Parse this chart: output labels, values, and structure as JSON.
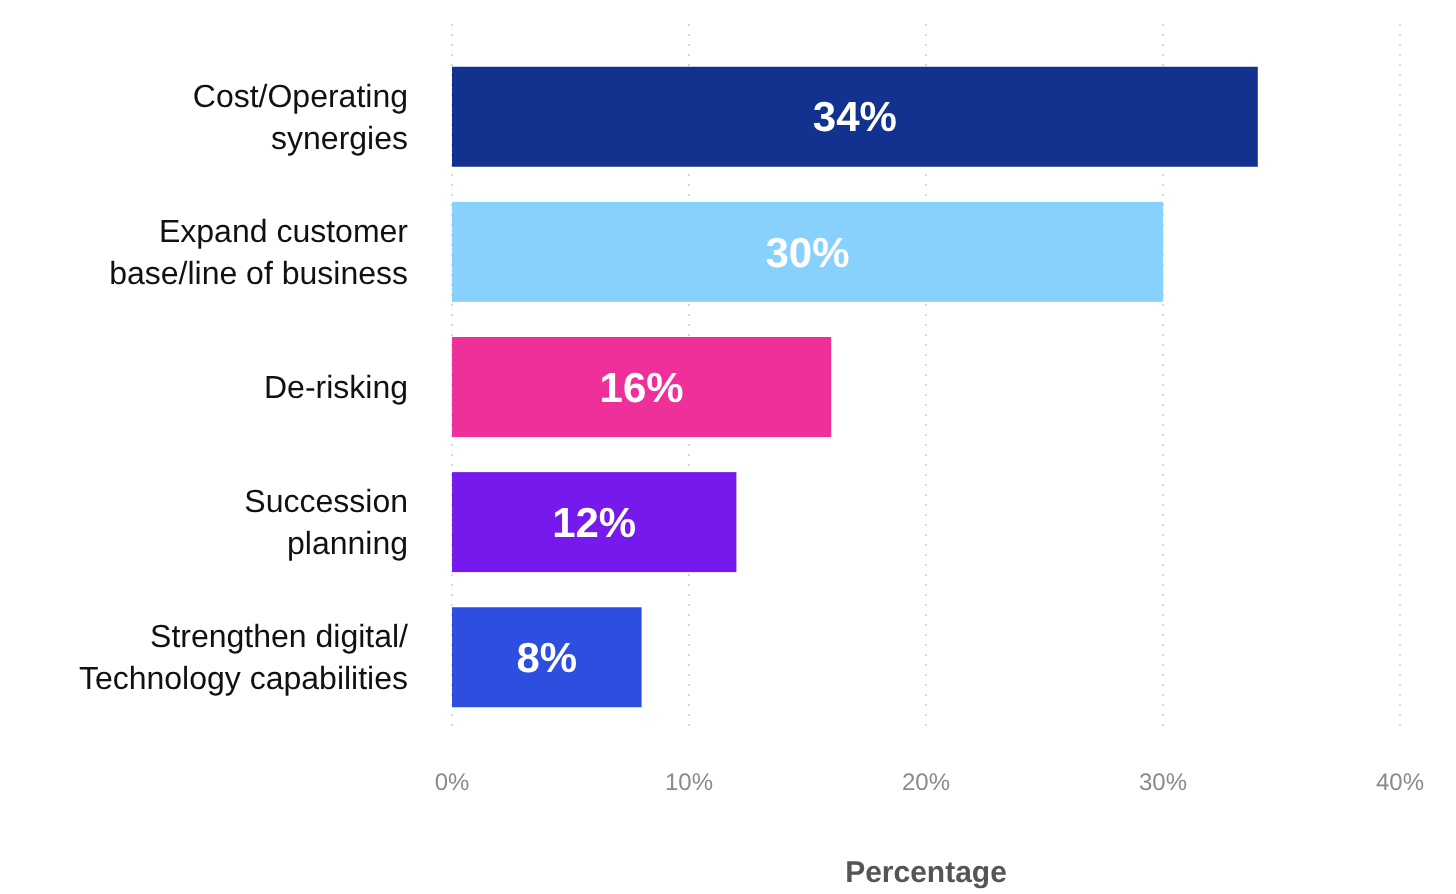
{
  "chart_data": {
    "type": "bar",
    "orientation": "horizontal",
    "xlabel": "Percentage",
    "categories": [
      "Cost/Operating\nsynergies",
      "Expand customer\nbase/line of business",
      "De-risking",
      "Succession\nplanning",
      "Strengthen digital/\nTechnology capabilities"
    ],
    "values": [
      34,
      30,
      16,
      12,
      8
    ],
    "colors": [
      "#13328f",
      "#87d1fc",
      "#f0309a",
      "#7519ec",
      "#2e4ee0"
    ],
    "value_labels": [
      "34%",
      "30%",
      "16%",
      "12%",
      "8%"
    ],
    "xlim": [
      0,
      40
    ],
    "xticks": [
      {
        "value": 0,
        "label": "0%"
      },
      {
        "value": 10,
        "label": "10%"
      },
      {
        "value": 20,
        "label": "20%"
      },
      {
        "value": 30,
        "label": "30%"
      },
      {
        "value": 40,
        "label": "40%"
      }
    ],
    "grid": "x"
  }
}
